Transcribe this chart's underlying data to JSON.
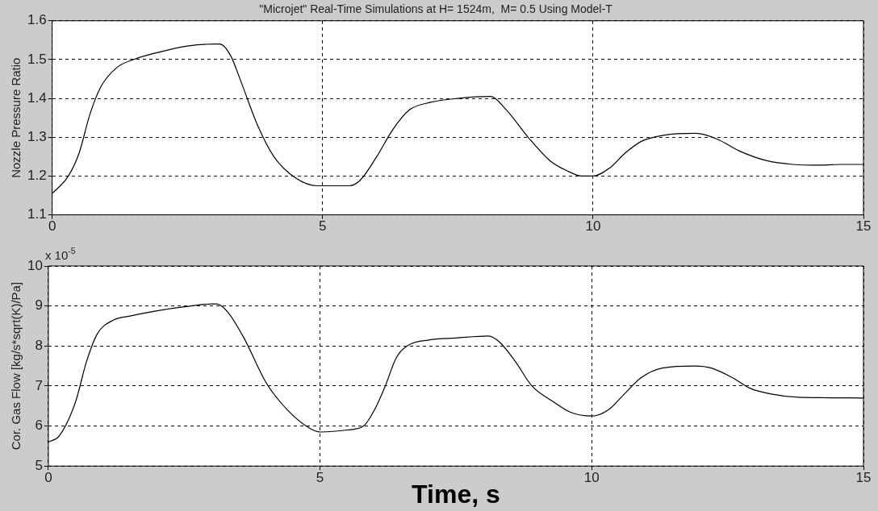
{
  "chart_data": [
    {
      "type": "line",
      "title": "\"Microjet\" Real-Time Simulations at H= 1524m,  M= 0.5 Using Model-T",
      "ylabel": "Nozzle Pressure Ratio",
      "xlim": [
        0,
        15
      ],
      "xticks": [
        0,
        5,
        10,
        15
      ],
      "ylim": [
        1.1,
        1.6
      ],
      "yticks": [
        1.1,
        1.2,
        1.3,
        1.4,
        1.5,
        1.6
      ],
      "grid": true,
      "legend": false,
      "marker": "none",
      "line_style": "solid",
      "series": [
        {
          "color": "#000000",
          "x": [
            0,
            0.3,
            0.5,
            0.7,
            0.9,
            1.2,
            1.5,
            2,
            2.5,
            3,
            3.1,
            3.3,
            3.5,
            3.8,
            4.1,
            4.5,
            4.9,
            5.5,
            5.7,
            6,
            6.3,
            6.6,
            7,
            7.5,
            8.1,
            8.4,
            8.8,
            9.2,
            9.5,
            9.8,
            10,
            10.3,
            10.6,
            10.9,
            11.3,
            11.9,
            12.3,
            12.7,
            13.2,
            13.7,
            14.2,
            14.6,
            15
          ],
          "values": [
            1.155,
            1.2,
            1.26,
            1.36,
            1.43,
            1.48,
            1.5,
            1.52,
            1.535,
            1.54,
            1.54,
            1.51,
            1.44,
            1.33,
            1.25,
            1.195,
            1.175,
            1.175,
            1.19,
            1.25,
            1.32,
            1.37,
            1.39,
            1.4,
            1.405,
            1.37,
            1.3,
            1.24,
            1.215,
            1.2,
            1.2,
            1.22,
            1.26,
            1.29,
            1.305,
            1.31,
            1.295,
            1.265,
            1.24,
            1.23,
            1.228,
            1.23,
            1.23
          ]
        }
      ]
    },
    {
      "type": "line",
      "ylabel": "Cor. Gas Flow [kg/s*sqrt(K)/Pa]",
      "xlabel": "Time, s",
      "annotations": [
        "x 10$^{-5}$"
      ],
      "xlim": [
        0,
        15
      ],
      "xticks": [
        0,
        5,
        10,
        15
      ],
      "ylim": [
        5,
        10
      ],
      "yticks": [
        5,
        6,
        7,
        8,
        9,
        10
      ],
      "grid": true,
      "legend": false,
      "marker": "none",
      "line_style": "solid",
      "series": [
        {
          "color": "#000000",
          "x": [
            0,
            0.2,
            0.5,
            0.7,
            0.9,
            1.2,
            1.5,
            2,
            2.5,
            3,
            3.1,
            3.3,
            3.6,
            4,
            4.4,
            4.8,
            5,
            5.5,
            5.8,
            6,
            6.2,
            6.4,
            6.6,
            7,
            7.5,
            8.1,
            8.3,
            8.6,
            8.9,
            9.3,
            9.6,
            10,
            10.3,
            10.6,
            10.9,
            11.3,
            11.9,
            12.2,
            12.6,
            12.9,
            13.3,
            13.8,
            15
          ],
          "values": [
            5.6,
            5.75,
            6.6,
            7.6,
            8.3,
            8.65,
            8.75,
            8.88,
            8.98,
            9.05,
            9.05,
            8.85,
            8.2,
            7.1,
            6.4,
            5.95,
            5.85,
            5.9,
            6,
            6.4,
            7,
            7.7,
            8,
            8.15,
            8.2,
            8.25,
            8.1,
            7.6,
            7,
            6.6,
            6.35,
            6.25,
            6.4,
            6.8,
            7.2,
            7.45,
            7.5,
            7.45,
            7.2,
            6.95,
            6.8,
            6.72,
            6.7
          ]
        }
      ]
    }
  ]
}
